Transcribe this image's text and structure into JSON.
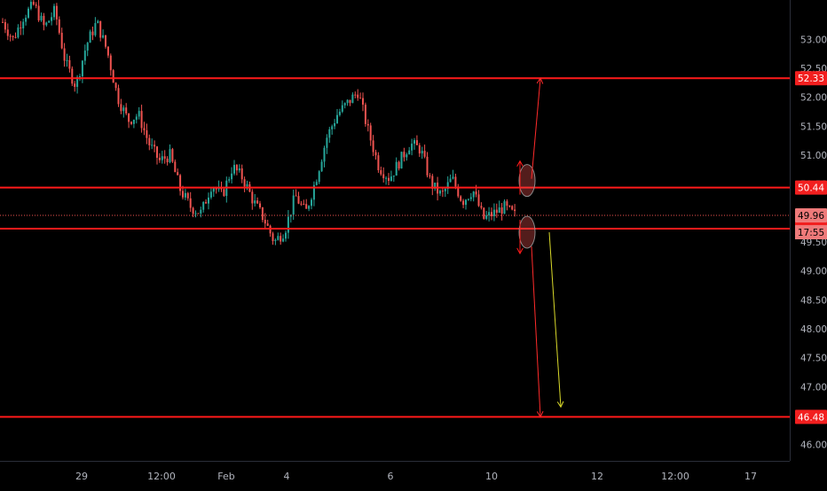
{
  "chart_data": {
    "type": "candlestick",
    "title": "",
    "x_tick_labels": [
      "29",
      "12:00",
      "Feb",
      "4",
      "6",
      "10",
      "12",
      "12:00",
      "17"
    ],
    "y_ticks": [
      53.0,
      52.5,
      52.0,
      51.5,
      51.0,
      50.5,
      50.0,
      49.5,
      49.0,
      48.5,
      48.0,
      47.5,
      47.0,
      46.5,
      46.0
    ],
    "y_tick_labels": [
      "53.00",
      "52.50",
      "52.00",
      "51.50",
      "51.00",
      "50.50",
      "50.00",
      "49.50",
      "49.00",
      "48.50",
      "48.00",
      "47.50",
      "47.00",
      "46.50",
      "46.00"
    ],
    "y_range": [
      45.72,
      53.68
    ],
    "horizontal_levels": [
      {
        "value": 52.33,
        "label": "52.33"
      },
      {
        "value": 50.44,
        "label": "50.44"
      },
      {
        "value": 49.73,
        "label": "49.73"
      },
      {
        "value": 46.48,
        "label": "46.48"
      }
    ],
    "current_price": {
      "value": 49.96,
      "label": "49.96"
    },
    "countdown": "17:55",
    "price_path": [
      53.3,
      53.0,
      53.4,
      53.6,
      53.2,
      53.5,
      52.6,
      52.2,
      52.9,
      53.3,
      52.8,
      52.0,
      51.6,
      51.7,
      51.2,
      50.9,
      51.0,
      50.4,
      50.1,
      50.0,
      50.5,
      50.3,
      50.8,
      50.6,
      50.2,
      49.9,
      49.5,
      49.7,
      50.3,
      50.0,
      50.6,
      51.3,
      51.7,
      51.9,
      52.1,
      51.4,
      50.8,
      50.6,
      50.9,
      51.2,
      51.1,
      50.5,
      50.3,
      50.6,
      50.2,
      50.4,
      49.9,
      50.0,
      50.1,
      49.96
    ],
    "arrows": [
      {
        "from": 50.44,
        "to": 52.33,
        "color": "#ff2b2b"
      },
      {
        "from": 49.73,
        "to": 46.48,
        "color": "#ff2b2b"
      },
      {
        "from": 49.73,
        "to": 46.65,
        "color": "#d9d92a"
      }
    ],
    "colors": {
      "background": "#000000",
      "up": "#26a69a",
      "down": "#ef5350",
      "level": "#ff1a1a",
      "label_bg": "#f21f1f",
      "axis_text": "#b2b5be",
      "current_label_bg": "#ef7a7a",
      "projection": "#d9d92a"
    }
  }
}
